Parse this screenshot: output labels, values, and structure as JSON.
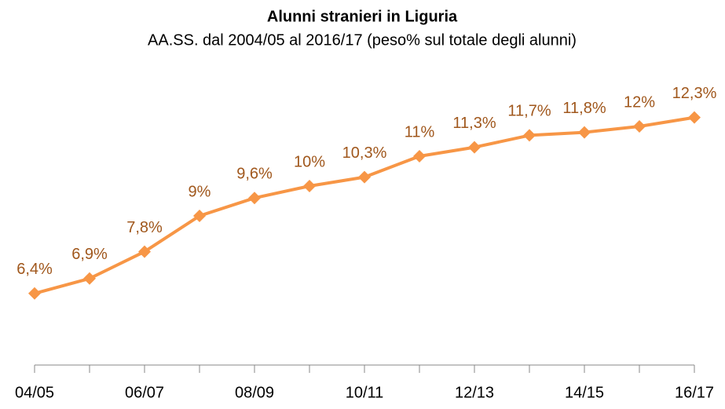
{
  "chart_data": {
    "type": "line",
    "title": "Alunni stranieri in Liguria",
    "subtitle": "AA.SS. dal 2004/05 al 2016/17 (peso% sul totale degli alunni)",
    "categories": [
      "04/05",
      null,
      "06/07",
      null,
      "08/09",
      null,
      "10/11",
      null,
      "12/13",
      null,
      "14/15",
      null,
      "16/17"
    ],
    "series": [
      {
        "color": "#f79646",
        "label_color": "#a0571c",
        "values": [
          6.4,
          6.9,
          7.8,
          9,
          9.6,
          10,
          10.3,
          11,
          11.3,
          11.7,
          11.8,
          12,
          12.3
        ],
        "value_labels": [
          "6,4%",
          "6,9%",
          "7,8%",
          "9%",
          "9,6%",
          "10%",
          "10,3%",
          "11%",
          "11,3%",
          "11,7%",
          "11,8%",
          "12%",
          "12,3%"
        ]
      }
    ],
    "ylim": [
      4,
      14
    ]
  }
}
